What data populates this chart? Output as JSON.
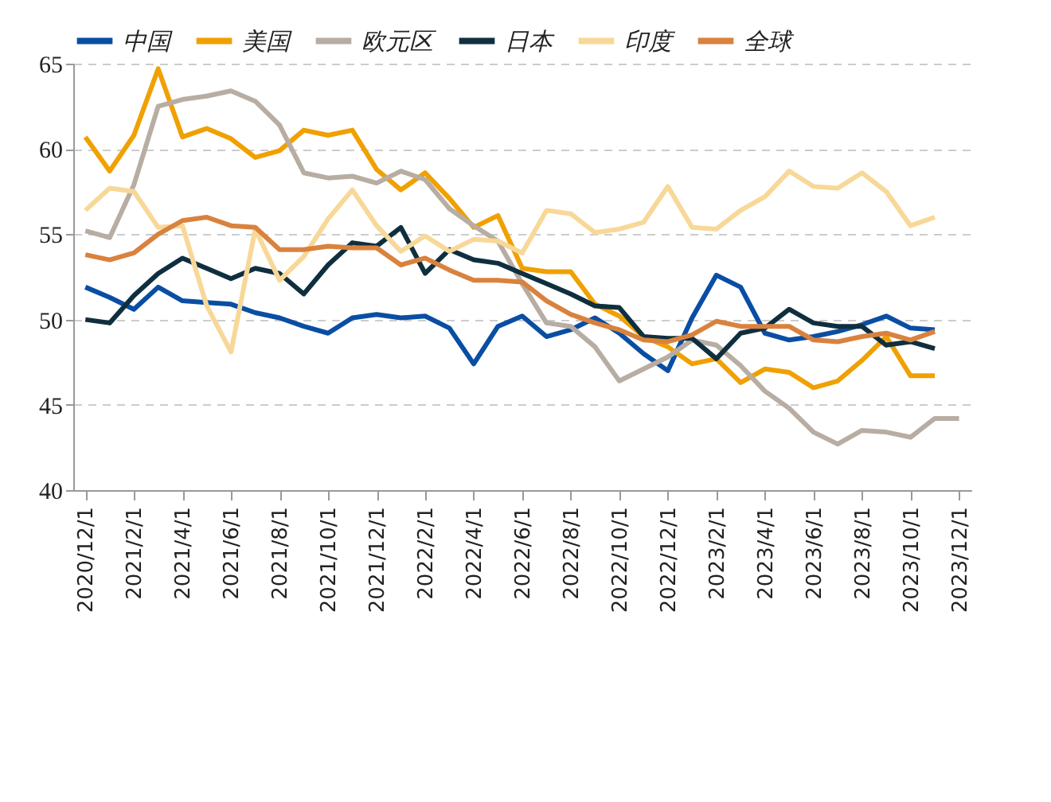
{
  "chart_data": {
    "type": "line",
    "categories": [
      "2020/12/1",
      null,
      "2021/2/1",
      null,
      "2021/4/1",
      null,
      "2021/6/1",
      null,
      "2021/8/1",
      null,
      "2021/10/1",
      null,
      "2021/12/1",
      null,
      "2022/2/1",
      null,
      "2022/4/1",
      null,
      "2022/6/1",
      null,
      "2022/8/1",
      null,
      "2022/10/1",
      null,
      "2022/12/1",
      null,
      "2023/2/1",
      null,
      "2023/4/1",
      null,
      "2023/6/1",
      null,
      "2023/8/1",
      null,
      "2023/10/1",
      null,
      "2023/12/1"
    ],
    "ylim": [
      40,
      65
    ],
    "yticks": [
      40,
      45,
      50,
      55,
      60,
      65
    ],
    "grid": "y",
    "legend": "top",
    "line_style": "solid",
    "marker": "none",
    "series": [
      {
        "name": "中国",
        "color": "#0a4ea3",
        "values": [
          51.9,
          51.3,
          50.6,
          51.9,
          51.1,
          51.0,
          50.9,
          50.4,
          50.1,
          49.6,
          49.2,
          50.1,
          50.3,
          50.1,
          50.2,
          49.5,
          47.4,
          49.6,
          50.2,
          49.0,
          49.4,
          50.1,
          49.2,
          48.0,
          47.0,
          50.1,
          52.6,
          51.9,
          49.2,
          48.8,
          49.0,
          49.3,
          49.7,
          50.2,
          49.5,
          49.4,
          null
        ]
      },
      {
        "name": "美国",
        "color": "#f0a000",
        "values": [
          60.7,
          58.7,
          60.8,
          64.7,
          60.7,
          61.2,
          60.6,
          59.5,
          59.9,
          61.1,
          60.8,
          61.1,
          58.8,
          57.6,
          58.6,
          57.1,
          55.4,
          56.1,
          53.0,
          52.8,
          52.8,
          50.9,
          50.2,
          49.0,
          48.4,
          47.4,
          47.7,
          46.3,
          47.1,
          46.9,
          46.0,
          46.4,
          47.6,
          49.0,
          46.7,
          46.7,
          null
        ]
      },
      {
        "name": "欧元区",
        "color": "#b8ada3",
        "values": [
          55.2,
          54.8,
          57.9,
          62.5,
          62.9,
          63.1,
          63.4,
          62.8,
          61.4,
          58.6,
          58.3,
          58.4,
          58.0,
          58.7,
          58.2,
          56.5,
          55.5,
          54.6,
          52.1,
          49.8,
          49.6,
          48.4,
          46.4,
          47.1,
          47.8,
          48.8,
          48.5,
          47.3,
          45.8,
          44.8,
          43.4,
          42.7,
          43.5,
          43.4,
          43.1,
          44.2,
          44.2
        ]
      },
      {
        "name": "日本",
        "color": "#0f2f3f",
        "values": [
          50.0,
          49.8,
          51.4,
          52.7,
          53.6,
          53.0,
          52.4,
          53.0,
          52.7,
          51.5,
          53.2,
          54.5,
          54.3,
          55.4,
          52.7,
          54.1,
          53.5,
          53.3,
          52.7,
          52.1,
          51.5,
          50.8,
          50.7,
          49.0,
          48.9,
          48.9,
          47.7,
          49.2,
          49.5,
          50.6,
          49.8,
          49.6,
          49.6,
          48.5,
          48.7,
          48.3,
          null
        ]
      },
      {
        "name": "印度",
        "color": "#f8d898",
        "values": [
          56.4,
          57.7,
          57.5,
          55.4,
          55.5,
          50.8,
          48.1,
          55.3,
          52.3,
          53.7,
          55.9,
          57.6,
          55.5,
          54.0,
          54.9,
          54.0,
          54.7,
          54.6,
          53.9,
          56.4,
          56.2,
          55.1,
          55.3,
          55.7,
          57.8,
          55.4,
          55.3,
          56.4,
          57.2,
          58.7,
          57.8,
          57.7,
          58.6,
          57.5,
          55.5,
          56.0,
          null
        ]
      },
      {
        "name": "全球",
        "color": "#d9823e",
        "values": [
          53.8,
          53.5,
          53.9,
          55.0,
          55.8,
          56.0,
          55.5,
          55.4,
          54.1,
          54.1,
          54.3,
          54.2,
          54.2,
          53.2,
          53.6,
          52.9,
          52.3,
          52.3,
          52.2,
          51.1,
          50.3,
          49.8,
          49.4,
          48.8,
          48.7,
          49.1,
          49.9,
          49.6,
          49.6,
          49.6,
          48.8,
          48.7,
          49.0,
          49.2,
          48.8,
          49.3,
          null
        ]
      }
    ]
  }
}
